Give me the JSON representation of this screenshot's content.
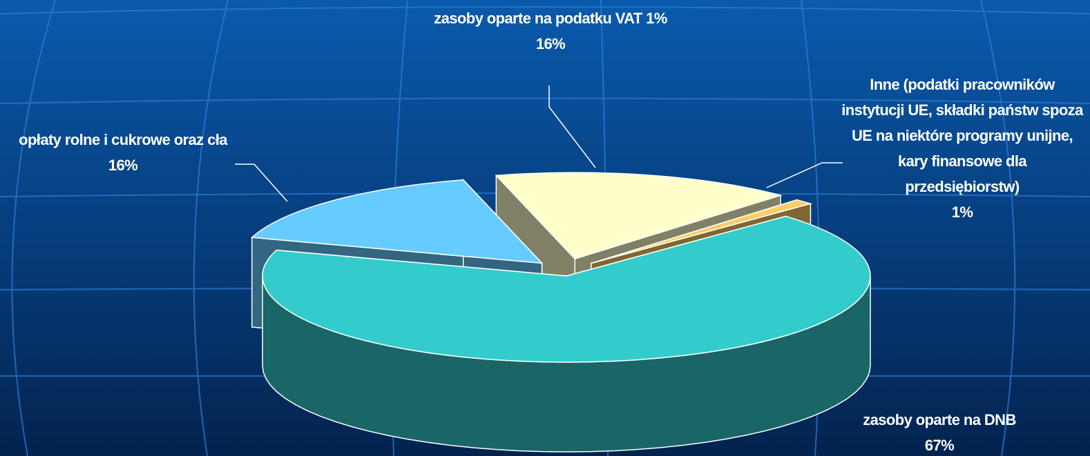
{
  "chart_data": {
    "type": "pie3d",
    "categories": [
      "zasoby oparte na podatku VAT 1%",
      "Inne (podatki pracowników instytucji UE, składki państw spoza UE na niektóre programy unijne, kary finansowe dla przedsiębiorstw)",
      "zasoby oparte na DNB",
      "opłaty rolne i cukrowe oraz cła"
    ],
    "values": [
      16,
      1,
      67,
      16
    ],
    "value_labels": [
      "16%",
      "1%",
      "67%",
      "16%"
    ],
    "colors": [
      "#ffffcc",
      "#ffcc66",
      "#33cccc",
      "#66ccff"
    ]
  }
}
